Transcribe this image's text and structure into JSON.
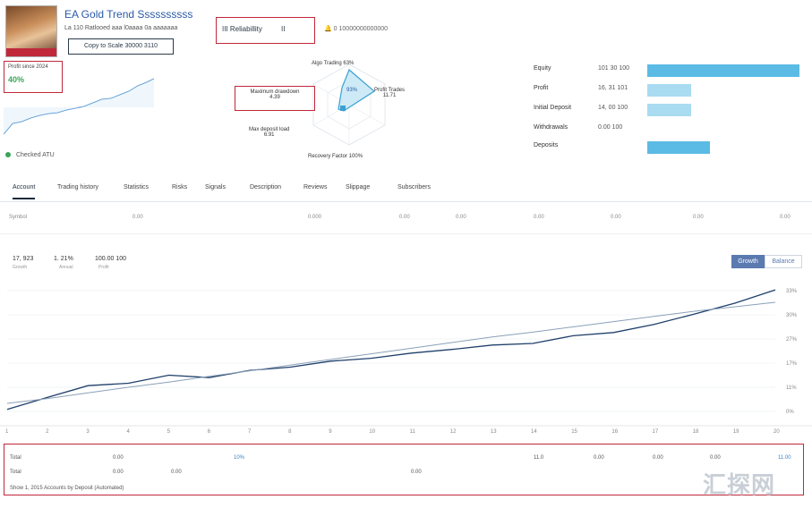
{
  "header": {
    "title": "EA Gold Trend Ssssssssss",
    "subline": "La 110 Ratlooed aaa l0aaaa 0a aaaaaaa",
    "copy_button": "Copy to Scale 30000 3110",
    "stat_a": "III Reliabillity",
    "stat_b": "II",
    "extra": "0 10000000000000"
  },
  "gain": {
    "label": "Profit since 2024",
    "value": "40%"
  },
  "verify": "Checked ATU",
  "radar": {
    "top": "Algo Trading 63%",
    "right_label": "Profit Trades",
    "right_value": "11.71",
    "left_label": "Maximum drawdown",
    "left_value": "4.39",
    "bottom_left_label": "Max deposit load",
    "bottom_left_value": "6.91",
    "bottom": "Recovery Factor 100%",
    "center": "93%"
  },
  "bars": [
    {
      "label": "Equity",
      "value": "101 30 100",
      "fill": 1.0
    },
    {
      "label": "Profit",
      "value": "16, 31 101",
      "fill": 0.29
    },
    {
      "label": "Initial Deposit",
      "value": "14, 00 100",
      "fill": 0.29
    },
    {
      "label": "Withdrawals",
      "value": "0.00 100",
      "fill": 0.0
    },
    {
      "label": "Deposits",
      "value": "",
      "fill": 0.41
    }
  ],
  "tabs": [
    "Account",
    "Trading history",
    "Statistics",
    "Risks",
    "Signals",
    "Description",
    "Reviews",
    "Slippage",
    "Subscribers"
  ],
  "axis_labels": [
    "Symbol",
    "0.00",
    "0.000",
    "0.00",
    "0.00",
    "0.00",
    "0.00",
    "0.00",
    "0.00",
    "0.000"
  ],
  "chart_stats": [
    {
      "value": "17, 923",
      "sub": "Growth"
    },
    {
      "value": "1. 21%",
      "sub": "Annual"
    },
    {
      "value": "100.00 100",
      "sub": "Profit"
    }
  ],
  "chart_toggle": {
    "on": "Growth",
    "off": "Balance"
  },
  "chart_data": {
    "type": "line",
    "x": [
      "1",
      "2",
      "3",
      "4",
      "5",
      "6",
      "7",
      "8",
      "9",
      "10",
      "11",
      "12",
      "13",
      "14",
      "15",
      "16",
      "17",
      "18",
      "19",
      "20"
    ],
    "series": [
      {
        "values": [
          0.5,
          3.5,
          6.4,
          7.0,
          9.0,
          8.4,
          10.2,
          11.0,
          12.5,
          13.2,
          14.5,
          15.4,
          16.5,
          16.9,
          18.8,
          19.6,
          21.6,
          24.2,
          26.9,
          30.2
        ]
      },
      {
        "values": [
          2.0,
          3.2,
          4.6,
          6.0,
          7.3,
          8.7,
          10.1,
          11.5,
          12.9,
          14.3,
          15.7,
          17.1,
          18.5,
          19.7,
          21.0,
          22.3,
          23.6,
          24.9,
          26.0,
          27.1
        ]
      }
    ],
    "y_ticks": [
      "0%",
      "11%",
      "17%",
      "27%",
      "30%",
      "33%"
    ],
    "ylim": [
      0,
      32
    ],
    "colors": {
      "balance": "#1f3f6a",
      "equity": "#8aa0b8"
    }
  },
  "footer": {
    "row1": [
      "Total",
      "0.00",
      "10%",
      "11.0",
      "0.00",
      "0.00",
      "0.00",
      "11.00"
    ],
    "row2": [
      "Total",
      "0.00",
      "0.00",
      "0.00"
    ],
    "note": "Show 1, 2015 Accounts by Deposit (Automated)"
  },
  "watermark": "汇探网"
}
